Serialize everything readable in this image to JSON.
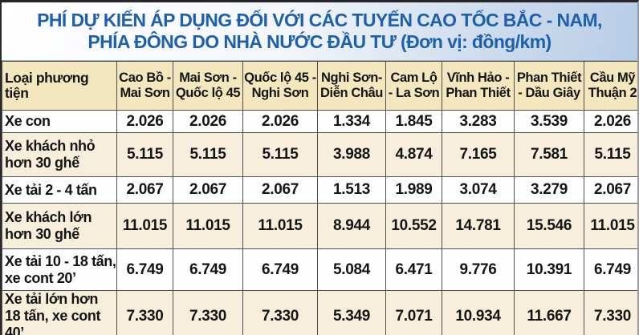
{
  "title": {
    "line1": "PHÍ DỰ KIẾN ÁP DỤNG ĐỐI VỚI CÁC TUYẾN CAO TỐC BẮC - NAM,",
    "line2": "PHÍA ĐÔNG DO NHÀ NƯỚC ĐẦU TƯ (Đơn vị: đồng/km)"
  },
  "table": {
    "vehicle_column_header": "Loại phương tiện",
    "route_headers": [
      "Cao Bồ - Mai Sơn",
      "Mai Sơn - Quốc lộ 45",
      "Quốc lộ 45 - Nghi Sơn",
      "Nghi Sơn- Diễn Châu",
      "Cam Lộ - La Sơn",
      "Vĩnh Hảo - Phan Thiết",
      "Phan Thiết - Dầu Giây",
      "Cầu Mỹ Thuận 2"
    ],
    "rows": [
      {
        "label": "Xe con",
        "values": [
          "2.026",
          "2.026",
          "2.026",
          "1.334",
          "1.845",
          "3.283",
          "3.539",
          "2.026"
        ]
      },
      {
        "label": "Xe khách nhỏ hơn 30 ghế",
        "values": [
          "5.115",
          "5.115",
          "5.115",
          "3.988",
          "4.874",
          "7.165",
          "7.581",
          "5.115"
        ]
      },
      {
        "label": "Xe tải 2 - 4 tấn",
        "values": [
          "2.067",
          "2.067",
          "2.067",
          "1.513",
          "1.989",
          "3.074",
          "3.279",
          "2.067"
        ]
      },
      {
        "label": "Xe khách lớn hơn 30 ghế",
        "values": [
          "11.015",
          "11.015",
          "11.015",
          "8.944",
          "10.552",
          "14.781",
          "15.546",
          "11.015"
        ]
      },
      {
        "label": "Xe tải 10 - 18 tấn, xe cont 20’",
        "values": [
          "6.749",
          "6.749",
          "6.749",
          "5.084",
          "6.471",
          "9.776",
          "10.391",
          "6.749"
        ]
      },
      {
        "label": "Xe tải lớn hơn 18 tấn, xe cont 40’",
        "values": [
          "7.330",
          "7.330",
          "7.330",
          "5.349",
          "7.071",
          "10.934",
          "11.667",
          "7.330"
        ]
      }
    ]
  },
  "colors": {
    "title_text": "#1c60ae",
    "title_gradient_end": "#b7cde7",
    "header_bg": "#f4e6bd",
    "stripe_bg": "#f7eedb",
    "cell_border": "#4e4e4e"
  },
  "chart_data": {
    "type": "table",
    "title": "PHÍ DỰ KIẾN ÁP DỤNG ĐỐI VỚI CÁC TUYẾN CAO TỐC BẮC - NAM, PHÍA ĐÔNG DO NHÀ NƯỚC ĐẦU TƯ",
    "unit": "đồng/km",
    "columns": [
      "Loại phương tiện",
      "Cao Bồ - Mai Sơn",
      "Mai Sơn - Quốc lộ 45",
      "Quốc lộ 45 - Nghi Sơn",
      "Nghi Sơn- Diễn Châu",
      "Cam Lộ - La Sơn",
      "Vĩnh Hảo - Phan Thiết",
      "Phan Thiết - Dầu Giây",
      "Cầu Mỹ Thuận 2"
    ],
    "rows": [
      {
        "category": "Xe con",
        "values": [
          2026,
          2026,
          2026,
          1334,
          1845,
          3283,
          3539,
          2026
        ]
      },
      {
        "category": "Xe khách nhỏ hơn 30 ghế",
        "values": [
          5115,
          5115,
          5115,
          3988,
          4874,
          7165,
          7581,
          5115
        ]
      },
      {
        "category": "Xe tải 2 - 4 tấn",
        "values": [
          2067,
          2067,
          2067,
          1513,
          1989,
          3074,
          3279,
          2067
        ]
      },
      {
        "category": "Xe khách lớn hơn 30 ghế",
        "values": [
          11015,
          11015,
          11015,
          8944,
          10552,
          14781,
          15546,
          11015
        ]
      },
      {
        "category": "Xe tải 10 - 18 tấn, xe cont 20’",
        "values": [
          6749,
          6749,
          6749,
          5084,
          6471,
          9776,
          10391,
          6749
        ]
      },
      {
        "category": "Xe tải lớn hơn 18 tấn, xe cont 40’",
        "values": [
          7330,
          7330,
          7330,
          5349,
          7071,
          10934,
          11667,
          7330
        ]
      }
    ]
  }
}
